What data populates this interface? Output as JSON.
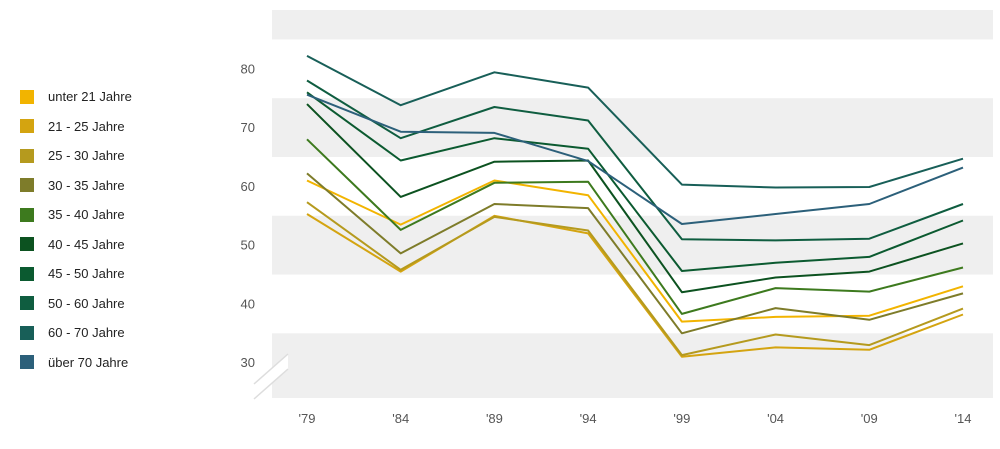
{
  "chart_data": {
    "type": "line",
    "categories": [
      "'79",
      "'84",
      "'89",
      "'94",
      "'99",
      "'04",
      "'09",
      "'14"
    ],
    "ylim": [
      24,
      90
    ],
    "yticks": [
      "30",
      "40",
      "50",
      "60",
      "70",
      "80"
    ],
    "y_axis_break": true,
    "grid": "alternating horizontal bands",
    "legend_position": "left",
    "series": [
      {
        "name": "unter 21 Jahre",
        "color": "#f2b400",
        "values": [
          61.0,
          53.5,
          61.0,
          58.5,
          37.0,
          37.8,
          38.0,
          43.0
        ]
      },
      {
        "name": "21 - 25 Jahre",
        "color": "#d4a410",
        "values": [
          55.3,
          45.5,
          55.0,
          52.0,
          31.0,
          32.6,
          32.2,
          38.2
        ]
      },
      {
        "name": "25 - 30 Jahre",
        "color": "#b59a1e",
        "values": [
          57.3,
          45.8,
          54.8,
          52.5,
          31.3,
          34.8,
          33.0,
          39.2
        ]
      },
      {
        "name": "30 - 35 Jahre",
        "color": "#7e7c2a",
        "values": [
          62.2,
          48.6,
          57.0,
          56.3,
          35.0,
          39.3,
          37.3,
          41.8
        ]
      },
      {
        "name": "35 - 40 Jahre",
        "color": "#3d7a1e",
        "values": [
          68.0,
          52.6,
          60.6,
          60.8,
          38.3,
          42.7,
          42.1,
          46.2
        ]
      },
      {
        "name": "40 - 45 Jahre",
        "color": "#0c5220",
        "values": [
          74.0,
          58.2,
          64.2,
          64.4,
          42.0,
          44.5,
          45.5,
          50.3
        ]
      },
      {
        "name": "45 - 50 Jahre",
        "color": "#0b5a30",
        "values": [
          76.0,
          64.4,
          68.2,
          66.4,
          45.6,
          47.0,
          48.0,
          54.2
        ]
      },
      {
        "name": "50 - 60 Jahre",
        "color": "#0f5d40",
        "values": [
          78.0,
          68.2,
          73.5,
          71.2,
          51.0,
          50.8,
          51.1,
          57.0
        ]
      },
      {
        "name": "60 - 70 Jahre",
        "color": "#185f58",
        "values": [
          82.2,
          73.8,
          79.4,
          76.8,
          60.3,
          59.8,
          59.9,
          64.7
        ]
      },
      {
        "name": "über 70 Jahre",
        "color": "#2c607a",
        "values": [
          75.6,
          69.3,
          69.1,
          64.3,
          53.6,
          55.3,
          57.0,
          63.2
        ]
      }
    ]
  }
}
